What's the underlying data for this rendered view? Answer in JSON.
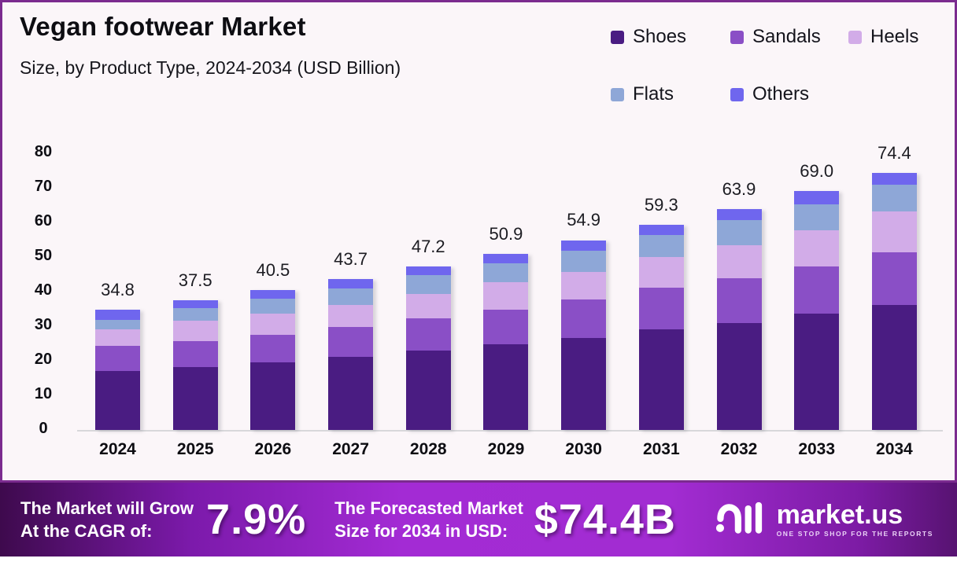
{
  "header": {
    "title": "Vegan footwear Market",
    "subtitle": "Size, by Product Type, 2024-2034 (USD Billion)"
  },
  "chart_data": {
    "type": "bar",
    "stacked": true,
    "title": "Vegan footwear Market Size, by Product Type, 2024-2034 (USD Billion)",
    "categories": [
      "2024",
      "2025",
      "2026",
      "2027",
      "2028",
      "2029",
      "2030",
      "2031",
      "2032",
      "2033",
      "2034"
    ],
    "series": [
      {
        "name": "Shoes",
        "color": "#4A1C82",
        "values": [
          17.0,
          18.3,
          19.6,
          21.2,
          23.0,
          24.8,
          26.5,
          29.0,
          31.0,
          33.6,
          36.2
        ]
      },
      {
        "name": "Sandals",
        "color": "#8A4FC6",
        "values": [
          7.4,
          7.5,
          8.0,
          8.5,
          9.3,
          10.0,
          11.2,
          12.1,
          12.8,
          13.8,
          15.2
        ]
      },
      {
        "name": "Heels",
        "color": "#D2ACE8",
        "values": [
          4.7,
          5.7,
          6.1,
          6.4,
          7.1,
          8.0,
          8.1,
          9.0,
          9.6,
          10.4,
          11.7
        ]
      },
      {
        "name": "Flats",
        "color": "#8EA7D7",
        "values": [
          2.8,
          3.7,
          4.3,
          4.9,
          5.3,
          5.5,
          6.1,
          6.3,
          7.3,
          7.5,
          7.7
        ]
      },
      {
        "name": "Others",
        "color": "#6F66EE",
        "values": [
          2.9,
          2.3,
          2.5,
          2.7,
          2.5,
          2.6,
          3.0,
          2.9,
          3.2,
          3.7,
          3.6
        ]
      }
    ],
    "totals": [
      "34.8",
      "37.5",
      "40.5",
      "43.7",
      "47.2",
      "50.9",
      "54.9",
      "59.3",
      "63.9",
      "69.0",
      "74.4"
    ],
    "xlabel": "",
    "ylabel": "",
    "ylim": [
      0,
      80
    ],
    "y_ticks": [
      0,
      10,
      20,
      30,
      40,
      50,
      60,
      70,
      80
    ],
    "grid": false,
    "legend_position": "top-right"
  },
  "footer": {
    "cagr_caption_line1": "The Market will Grow",
    "cagr_caption_line2": "At the CAGR of:",
    "cagr_value": "7.9%",
    "forecast_caption_line1": "The Forecasted Market",
    "forecast_caption_line2": "Size for 2034 in USD:",
    "forecast_value": "$74.4B",
    "brand_name": "market.us",
    "brand_tagline": "ONE STOP SHOP FOR THE REPORTS"
  },
  "colors": {
    "card_border": "#7B2B8F",
    "card_background": "#FBF6F9",
    "axis_line": "#D8D8DB",
    "footer_gradient_left": "#3E0A4D",
    "footer_gradient_mid": "#A32BD4",
    "footer_gradient_right": "#571371"
  }
}
